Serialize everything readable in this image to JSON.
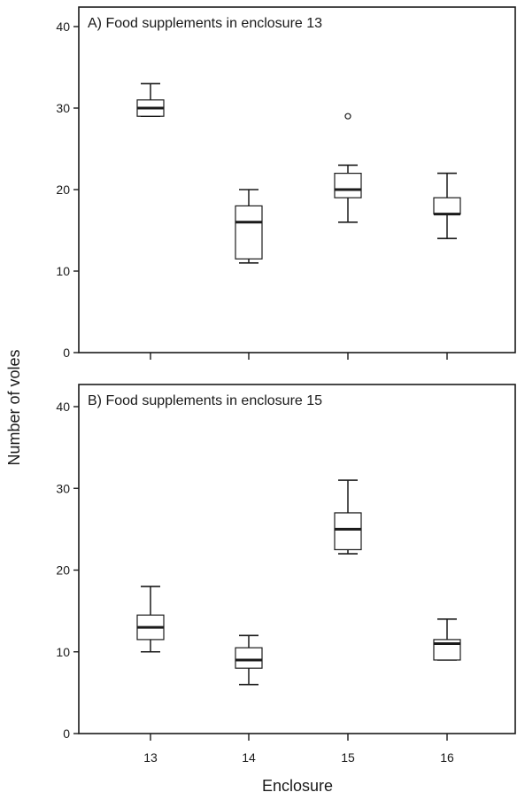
{
  "chart_data": {
    "type": "boxplot",
    "shared": {
      "xlabel": "Enclosure",
      "ylabel": "Number of voles",
      "categories": [
        "13",
        "14",
        "15",
        "16"
      ],
      "ylim": [
        0,
        40
      ],
      "yticks": [
        "0",
        "10",
        "20",
        "30",
        "40"
      ],
      "grid": false,
      "legend": "none"
    },
    "panels": [
      {
        "title": "A) Food supplements in enclosure 13",
        "boxes": [
          {
            "category": "13",
            "whisker_low": 29,
            "q1": 29,
            "median": 30,
            "q3": 31,
            "whisker_high": 33,
            "outliers": []
          },
          {
            "category": "14",
            "whisker_low": 11,
            "q1": 11.5,
            "median": 16,
            "q3": 18,
            "whisker_high": 20,
            "outliers": []
          },
          {
            "category": "15",
            "whisker_low": 16,
            "q1": 19,
            "median": 20,
            "q3": 22,
            "whisker_high": 23,
            "outliers": [
              29
            ]
          },
          {
            "category": "16",
            "whisker_low": 14,
            "q1": 17,
            "median": 17,
            "q3": 19,
            "whisker_high": 22,
            "outliers": []
          }
        ]
      },
      {
        "title": "B) Food supplements in enclosure 15",
        "boxes": [
          {
            "category": "13",
            "whisker_low": 10,
            "q1": 11.5,
            "median": 13,
            "q3": 14.5,
            "whisker_high": 18,
            "outliers": []
          },
          {
            "category": "14",
            "whisker_low": 6,
            "q1": 8,
            "median": 9,
            "q3": 10.5,
            "whisker_high": 12,
            "outliers": []
          },
          {
            "category": "15",
            "whisker_low": 22,
            "q1": 22.5,
            "median": 25,
            "q3": 27,
            "whisker_high": 31,
            "outliers": []
          },
          {
            "category": "16",
            "whisker_low": 9,
            "q1": 9,
            "median": 11,
            "q3": 11.5,
            "whisker_high": 14,
            "outliers": []
          }
        ]
      }
    ]
  }
}
